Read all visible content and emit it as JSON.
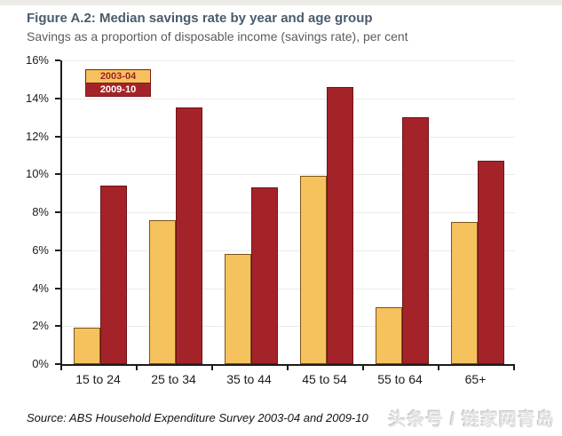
{
  "header": {
    "title": "Figure A.2: Median savings rate by year and age group",
    "subtitle": "Savings as a proportion of disposable income (savings rate), per cent"
  },
  "chart_data": {
    "type": "bar",
    "title": "Median savings rate by year and age group",
    "categories": [
      "15 to 24",
      "25 to 34",
      "35 to 44",
      "45 to 54",
      "55 to 64",
      "65+"
    ],
    "series": [
      {
        "name": "2003-04",
        "color": "#F6C25E",
        "border_color": "#7a5418",
        "label_text_color": "#9b2226",
        "values": [
          1.9,
          7.6,
          5.8,
          9.9,
          3.0,
          7.5
        ]
      },
      {
        "name": "2009-10",
        "color": "#A42329",
        "border_color": "#6e1418",
        "label_text_color": "#ffffff",
        "values": [
          9.4,
          13.5,
          9.3,
          14.6,
          13.0,
          10.7
        ]
      }
    ],
    "xlabel": "",
    "ylabel": "",
    "ylim": [
      0,
      16
    ],
    "ytick_step": 2,
    "ytick_suffix": "%",
    "grid": "horizontal",
    "legend_position": "top-left"
  },
  "footer": {
    "source": "Source: ABS Household Expenditure Survey 2003-04 and 2009-10",
    "watermark": "头条号 / 链家网青岛"
  }
}
